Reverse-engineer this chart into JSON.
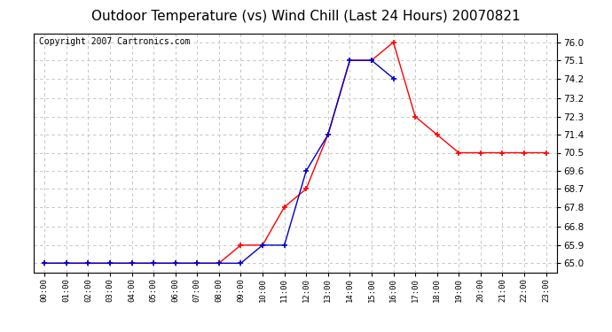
{
  "title": "Outdoor Temperature (vs) Wind Chill (Last 24 Hours) 20070821",
  "copyright": "Copyright 2007 Cartronics.com",
  "x_labels": [
    "00:00",
    "01:00",
    "02:00",
    "03:00",
    "04:00",
    "05:00",
    "06:00",
    "07:00",
    "08:00",
    "09:00",
    "10:00",
    "11:00",
    "12:00",
    "13:00",
    "14:00",
    "15:00",
    "16:00",
    "17:00",
    "18:00",
    "19:00",
    "20:00",
    "21:00",
    "22:00",
    "23:00"
  ],
  "y_ticks": [
    65.0,
    65.9,
    66.8,
    67.8,
    68.7,
    69.6,
    70.5,
    71.4,
    72.3,
    73.2,
    74.2,
    75.1,
    76.0
  ],
  "ylim": [
    64.55,
    76.45
  ],
  "temp_red": [
    65.0,
    65.0,
    65.0,
    65.0,
    65.0,
    65.0,
    65.0,
    65.0,
    65.0,
    65.9,
    65.9,
    67.8,
    68.7,
    71.4,
    75.1,
    75.1,
    76.0,
    72.3,
    71.4,
    70.5,
    70.5,
    70.5,
    70.5,
    70.5
  ],
  "wind_blue": [
    65.0,
    65.0,
    65.0,
    65.0,
    65.0,
    65.0,
    65.0,
    65.0,
    65.0,
    65.0,
    65.9,
    65.9,
    69.6,
    71.4,
    75.1,
    75.1,
    74.2,
    null,
    null,
    null,
    null,
    null,
    null,
    null
  ],
  "red_color": "#ff0000",
  "blue_color": "#0000cc",
  "bg_color": "#ffffff",
  "grid_color": "#bbbbbb",
  "title_fontsize": 11,
  "copyright_fontsize": 7
}
